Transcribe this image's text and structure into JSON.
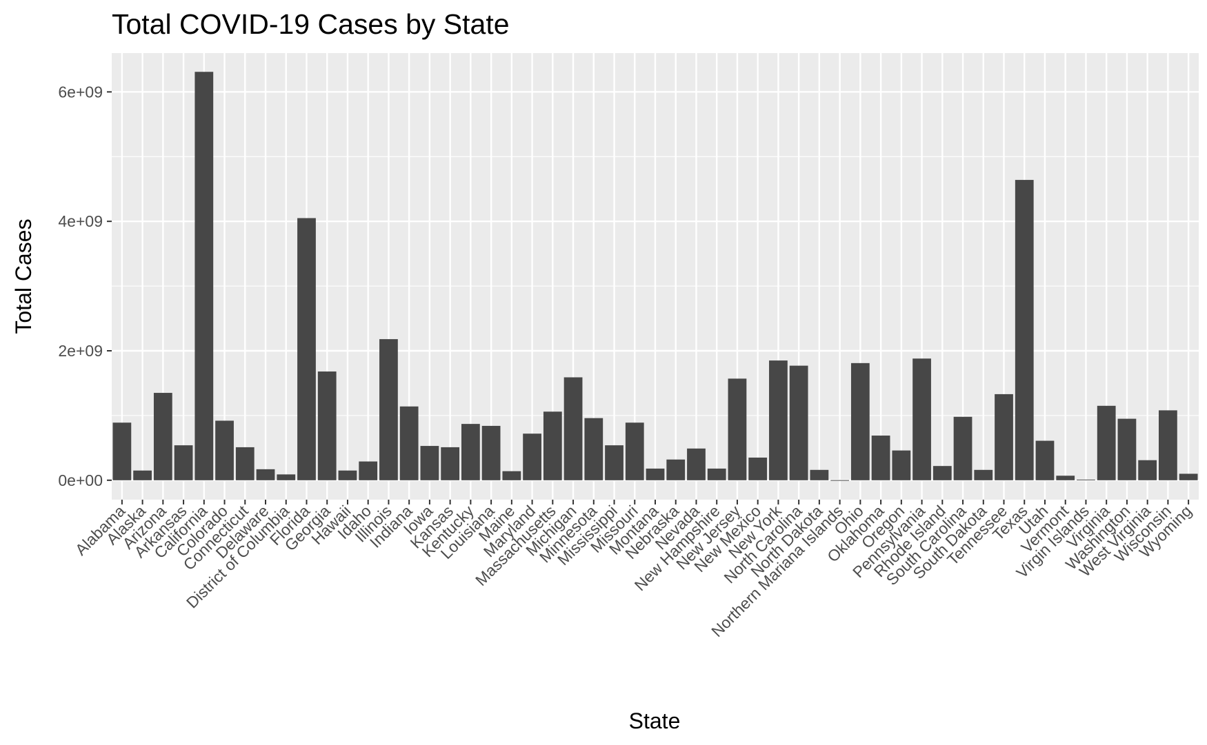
{
  "chart_data": {
    "type": "bar",
    "title": "Total COVID-19 Cases by State",
    "xlabel": "State",
    "ylabel": "Total Cases",
    "ylim": [
      -300000000,
      6600000000
    ],
    "yticks": [
      0,
      2000000000,
      4000000000,
      6000000000
    ],
    "ytick_labels": [
      "0e+00",
      "2e+09",
      "4e+09",
      "6e+09"
    ],
    "grid": true,
    "legend": "none",
    "colors": {
      "bar": "#474747",
      "panel": "#ebebeb",
      "grid": "#ffffff",
      "tick": "#4d4d4d"
    },
    "categories": [
      "Alabama",
      "Alaska",
      "Arizona",
      "Arkansas",
      "California",
      "Colorado",
      "Connecticut",
      "Delaware",
      "District of Columbia",
      "Florida",
      "Georgia",
      "Hawaii",
      "Idaho",
      "Illinois",
      "Indiana",
      "Iowa",
      "Kansas",
      "Kentucky",
      "Louisiana",
      "Maine",
      "Maryland",
      "Massachusetts",
      "Michigan",
      "Minnesota",
      "Mississippi",
      "Missouri",
      "Montana",
      "Nebraska",
      "Nevada",
      "New Hampshire",
      "New Jersey",
      "New Mexico",
      "New York",
      "North Carolina",
      "North Dakota",
      "Northern Mariana Islands",
      "Ohio",
      "Oklahoma",
      "Oregon",
      "Pennsylvania",
      "Rhode Island",
      "South Carolina",
      "South Dakota",
      "Tennessee",
      "Texas",
      "Utah",
      "Vermont",
      "Virgin Islands",
      "Virginia",
      "Washington",
      "West Virginia",
      "Wisconsin",
      "Wyoming"
    ],
    "values": [
      890000000,
      150000000,
      1350000000,
      540000000,
      6310000000,
      920000000,
      510000000,
      170000000,
      90000000,
      4050000000,
      1680000000,
      150000000,
      290000000,
      2180000000,
      1140000000,
      530000000,
      510000000,
      870000000,
      840000000,
      140000000,
      720000000,
      1060000000,
      1590000000,
      960000000,
      540000000,
      890000000,
      180000000,
      320000000,
      490000000,
      180000000,
      1570000000,
      350000000,
      1850000000,
      1770000000,
      160000000,
      2000000,
      1810000000,
      690000000,
      460000000,
      1880000000,
      220000000,
      980000000,
      160000000,
      1330000000,
      4640000000,
      610000000,
      70000000,
      10000000,
      1150000000,
      950000000,
      310000000,
      1080000000,
      100000000
    ]
  }
}
